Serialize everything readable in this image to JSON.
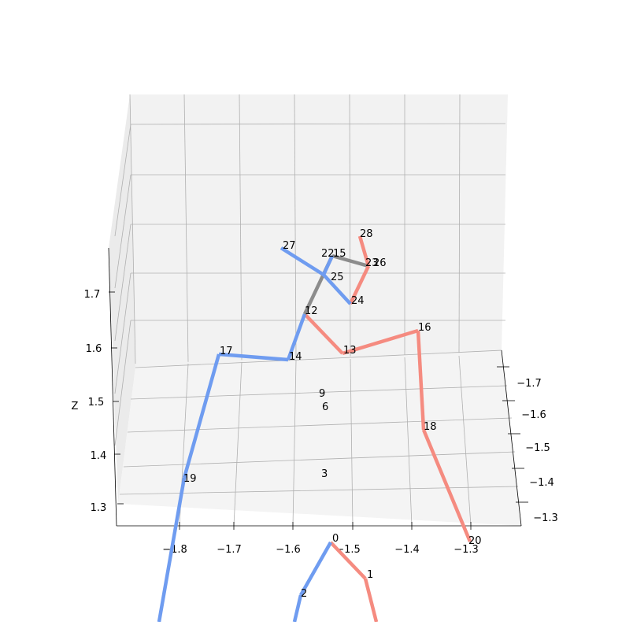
{
  "chart_data": {
    "type": "line",
    "projection": "3d",
    "title": "",
    "xlabel": "",
    "ylabel": "",
    "zlabel": "Z",
    "x_ticks": [
      "−1.8",
      "−1.7",
      "−1.6",
      "−1.5",
      "−1.4",
      "−1.3"
    ],
    "y_ticks": [
      "−1.7",
      "−1.6",
      "−1.5",
      "−1.4",
      "−1.3"
    ],
    "z_ticks": [
      "1.3",
      "1.4",
      "1.5",
      "1.6",
      "1.7"
    ],
    "grid": true,
    "colors": {
      "left": "#6f9cf0",
      "right": "#f58b80",
      "center": "#8c8c8c",
      "pane": "#f2f2f2",
      "grid": "#b0b0b0"
    },
    "joint_labels": [
      "0",
      "1",
      "2",
      "3",
      "6",
      "9",
      "12",
      "13",
      "14",
      "15",
      "16",
      "17",
      "18",
      "19",
      "20",
      "22",
      "23",
      "24",
      "25",
      "26",
      "27",
      "28"
    ],
    "bones": [
      {
        "group": "right",
        "joints": [
          "0",
          "1"
        ]
      },
      {
        "group": "left",
        "joints": [
          "0",
          "2"
        ]
      },
      {
        "group": "right",
        "joints": [
          "12",
          "13"
        ]
      },
      {
        "group": "right",
        "joints": [
          "13",
          "16"
        ]
      },
      {
        "group": "right",
        "joints": [
          "16",
          "18"
        ]
      },
      {
        "group": "right",
        "joints": [
          "18",
          "20"
        ]
      },
      {
        "group": "left",
        "joints": [
          "12",
          "14"
        ]
      },
      {
        "group": "left",
        "joints": [
          "14",
          "17"
        ]
      },
      {
        "group": "left",
        "joints": [
          "17",
          "19"
        ]
      },
      {
        "group": "center",
        "joints": [
          "12",
          "15"
        ]
      },
      {
        "group": "center",
        "joints": [
          "15",
          "23"
        ]
      },
      {
        "group": "right",
        "joints": [
          "23",
          "24"
        ]
      },
      {
        "group": "right",
        "joints": [
          "23",
          "28"
        ]
      },
      {
        "group": "left",
        "joints": [
          "15",
          "25"
        ]
      },
      {
        "group": "left",
        "joints": [
          "25",
          "24"
        ]
      },
      {
        "group": "left",
        "joints": [
          "25",
          "27"
        ]
      }
    ]
  }
}
